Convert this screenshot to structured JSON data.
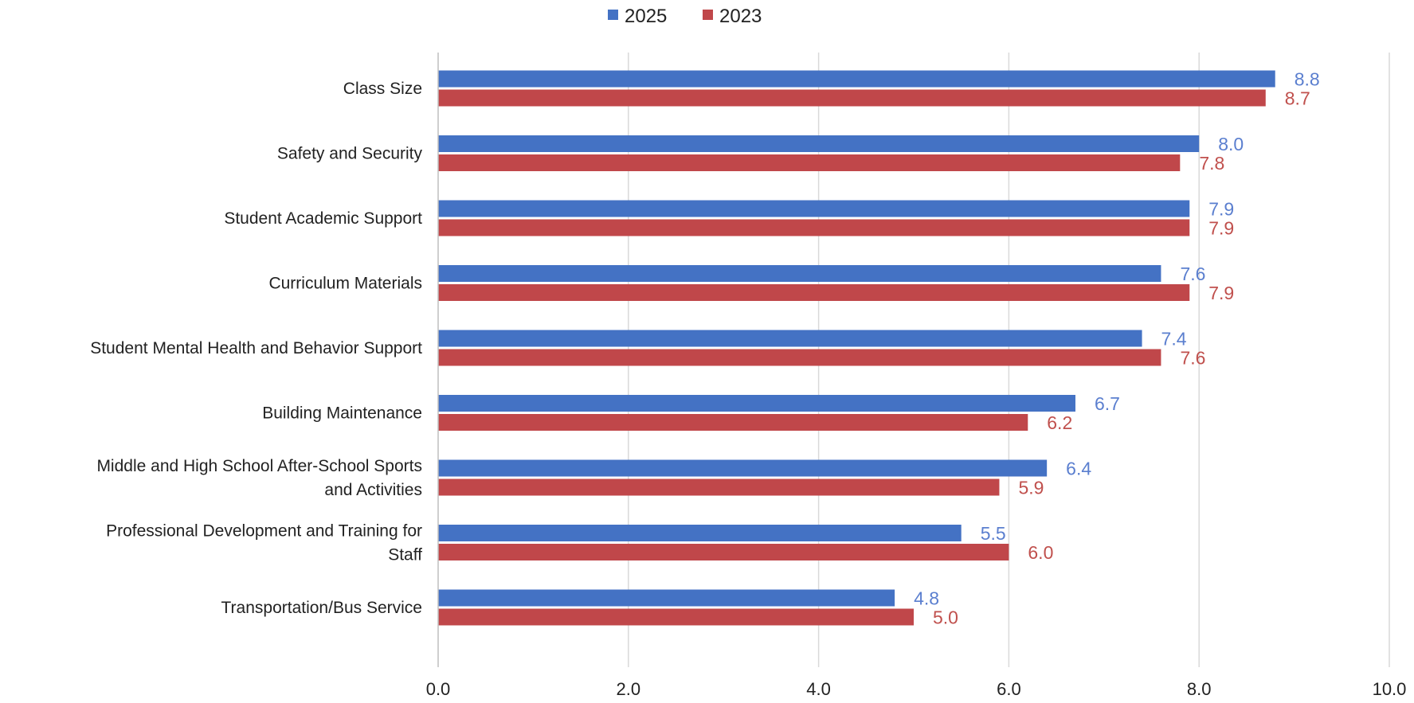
{
  "chart_data": {
    "type": "bar",
    "orientation": "horizontal",
    "categories": [
      [
        "Class Size"
      ],
      [
        "Safety and Security"
      ],
      [
        "Student Academic Support"
      ],
      [
        "Curriculum Materials"
      ],
      [
        "Student Mental Health and Behavior Support"
      ],
      [
        "Building Maintenance"
      ],
      [
        "Middle and High School After-School Sports",
        "and Activities"
      ],
      [
        "Professional Development and Training for",
        "Staff"
      ],
      [
        "Transportation/Bus Service"
      ]
    ],
    "series": [
      {
        "name": "2025",
        "color": "#4472c4",
        "label_color": "#5b7fcf",
        "values": [
          8.8,
          8.0,
          7.9,
          7.6,
          7.4,
          6.7,
          6.4,
          5.5,
          4.8
        ],
        "value_labels": [
          "8.8",
          "8.0",
          "7.9",
          "7.6",
          "7.4",
          "6.7",
          "6.4",
          "5.5",
          "4.8"
        ]
      },
      {
        "name": "2023",
        "color": "#c0474a",
        "label_color": "#c0504d",
        "values": [
          8.7,
          7.8,
          7.9,
          7.9,
          7.6,
          6.2,
          5.9,
          6.0,
          5.0
        ],
        "value_labels": [
          "8.7",
          "7.8",
          "7.9",
          "7.9",
          "7.6",
          "6.2",
          "5.9",
          "6.0",
          "5.0"
        ]
      }
    ],
    "xlim": [
      0,
      10
    ],
    "xticks": [
      "0.0",
      "2.0",
      "4.0",
      "6.0",
      "8.0",
      "10.0"
    ],
    "grid": true,
    "legend_position": "top-center",
    "title": "",
    "xlabel": "",
    "ylabel": ""
  }
}
